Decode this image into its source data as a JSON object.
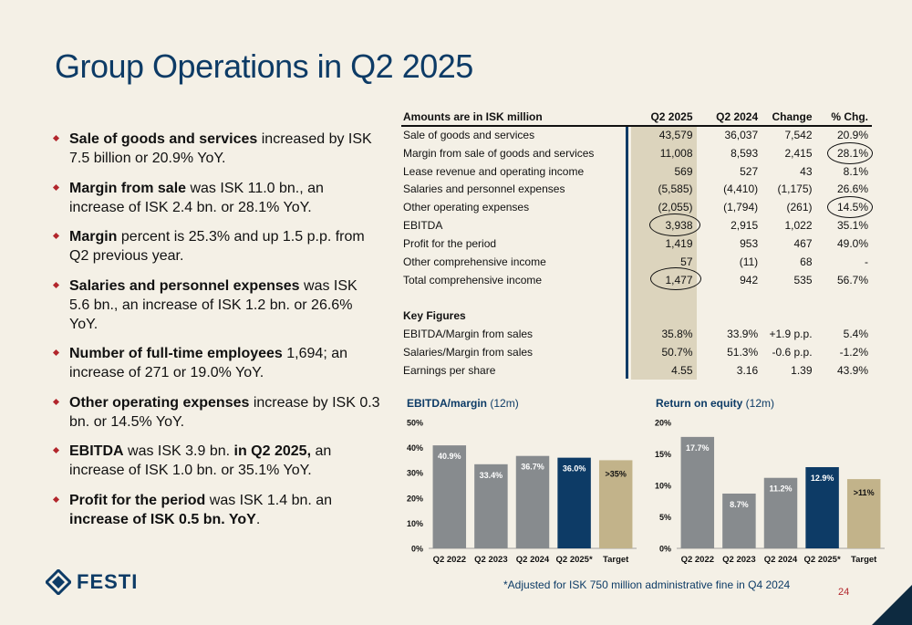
{
  "title": "Group Operations in Q2 2025",
  "bullets": [
    {
      "bold": "Sale of goods and services",
      "rest": " increased by ISK 7.5 billion or 20.9% YoY."
    },
    {
      "bold": "Margin from sale",
      "rest": " was ISK 11.0 bn., an increase of ISK 2.4 bn. or 28.1% YoY."
    },
    {
      "bold": "Margin",
      "rest": " percent is 25.3% and up 1.5 p.p. from Q2 previous year."
    },
    {
      "bold": "Salaries and personnel expenses",
      "rest": " was ISK 5.6 bn., an increase of ISK 1.2 bn. or 26.6% YoY."
    },
    {
      "bold": "Number of full-time employees",
      "rest": " 1,694; an increase of 271 or 19.0% YoY."
    },
    {
      "bold": "Other operating expenses",
      "rest": " increase by ISK 0.3 bn. or 14.5% YoY."
    },
    {
      "bold": "EBITDA",
      "rest": " was ISK 3.9 bn. ",
      "bold2": "in Q2 2025,",
      "rest2": " an increase of ISK 1.0 bn. or 35.1% YoY."
    },
    {
      "bold": "Profit for the period",
      "rest": " was ISK 1.4 bn. an ",
      "bold2": "increase of ISK 0.5 bn. YoY",
      "rest2": "."
    }
  ],
  "table": {
    "headers": [
      "Amounts are in ISK million",
      "Q2 2025",
      "Q2 2024",
      "Change",
      "% Chg."
    ],
    "rows": [
      [
        "Sale of goods and services",
        "43,579",
        "36,037",
        "7,542",
        "20.9%"
      ],
      [
        "Margin from sale of goods and services",
        "11,008",
        "8,593",
        "2,415",
        "28.1%"
      ],
      [
        "Lease revenue and operating income",
        "569",
        "527",
        "43",
        "8.1%"
      ],
      [
        "Salaries and personnel expenses",
        "(5,585)",
        "(4,410)",
        "(1,175)",
        "26.6%"
      ],
      [
        "Other operating expenses",
        "(2,055)",
        "(1,794)",
        "(261)",
        "14.5%"
      ],
      [
        "EBITDA",
        "3,938",
        "2,915",
        "1,022",
        "35.1%"
      ],
      [
        "Profit for the period",
        "1,419",
        "953",
        "467",
        "49.0%"
      ],
      [
        "Other comprehensive income",
        "57",
        "(11)",
        "68",
        "-"
      ],
      [
        "Total comprehensive income",
        "1,477",
        "942",
        "535",
        "56.7%"
      ]
    ],
    "key_figures_label": "Key Figures",
    "key_rows": [
      [
        "EBITDA/Margin from sales",
        "35.8%",
        "33.9%",
        "+1.9 p.p.",
        "5.4%"
      ],
      [
        "Salaries/Margin from sales",
        "50.7%",
        "51.3%",
        "-0.6 p.p.",
        "-1.2%"
      ],
      [
        "Earnings per share",
        "4.55",
        "3.16",
        "1.39",
        "43.9%"
      ]
    ]
  },
  "chart_titles": [
    {
      "main": "EBITDA/margin",
      "sub": " (12m)"
    },
    {
      "main": "Return on equity",
      "sub": " (12m)"
    }
  ],
  "chart_data": [
    {
      "type": "bar",
      "title": "EBITDA/margin (12m)",
      "categories": [
        "Q2 2022",
        "Q2 2023",
        "Q2 2024",
        "Q2 2025*",
        "Target"
      ],
      "values": [
        40.9,
        33.4,
        36.7,
        36.0,
        35
      ],
      "labels": [
        "40.9%",
        "33.4%",
        "36.7%",
        "36.0%",
        ">35%"
      ],
      "colors": [
        "#878b8e",
        "#878b8e",
        "#878b8e",
        "#0d3b66",
        "#c2b38a"
      ],
      "ylim": [
        0,
        50
      ],
      "yticks": [
        "0%",
        "10%",
        "20%",
        "30%",
        "40%",
        "50%"
      ],
      "grid": false
    },
    {
      "type": "bar",
      "title": "Return on equity (12m)",
      "categories": [
        "Q2 2022",
        "Q2 2023",
        "Q2 2024",
        "Q2 2025*",
        "Target"
      ],
      "values": [
        17.7,
        8.7,
        11.2,
        12.9,
        11
      ],
      "labels": [
        "17.7%",
        "8.7%",
        "11.2%",
        "12.9%",
        ">11%"
      ],
      "colors": [
        "#878b8e",
        "#878b8e",
        "#878b8e",
        "#0d3b66",
        "#c2b38a"
      ],
      "ylim": [
        0,
        20
      ],
      "yticks": [
        "0%",
        "5%",
        "10%",
        "15%",
        "20%"
      ],
      "grid": false
    }
  ],
  "logo_text": "FESTI",
  "footnote": "*Adjusted for ISK 750 million administrative fine in Q4 2024",
  "page_number": "24",
  "colors": {
    "navy": "#0d3b66",
    "gray_bar": "#878b8e",
    "target_bar": "#c2b38a",
    "highlight": "#dcd4bd",
    "bullet": "#b2262c"
  }
}
